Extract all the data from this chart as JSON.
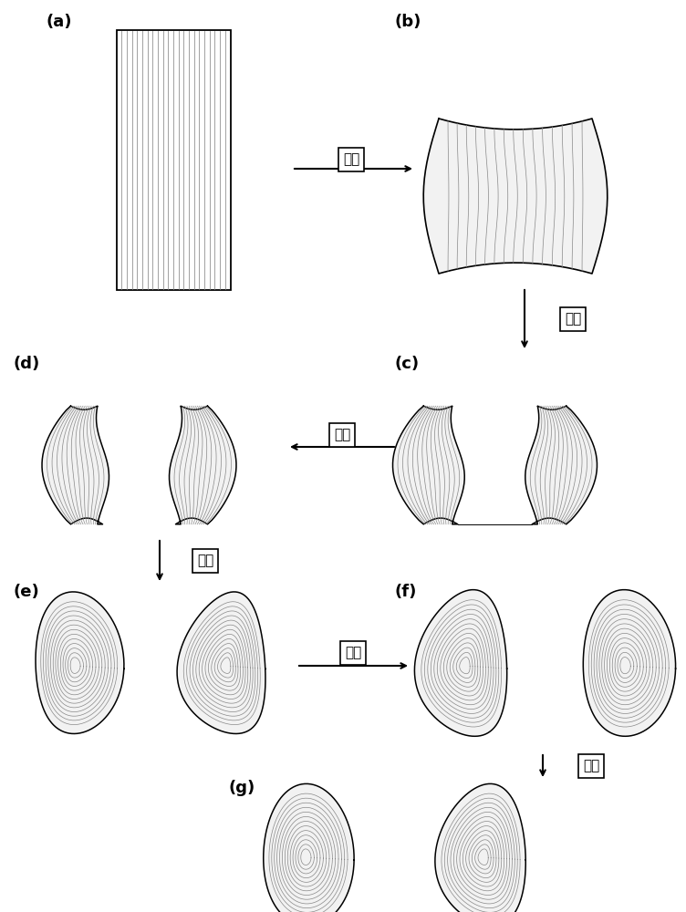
{
  "bg_color": "#ffffff",
  "line_color": "#888888",
  "outline_color": "#000000",
  "fill_color": "#f2f2f2",
  "labels": [
    "(a)",
    "(b)",
    "(c)",
    "(d)",
    "(e)",
    "(f)",
    "(g)"
  ],
  "step_labels": [
    "锻粗",
    "冲孔",
    "切底",
    "扩孔",
    "扩孔",
    "扩孔"
  ],
  "fig_width": 7.52,
  "fig_height": 10.0,
  "dpi": 100
}
